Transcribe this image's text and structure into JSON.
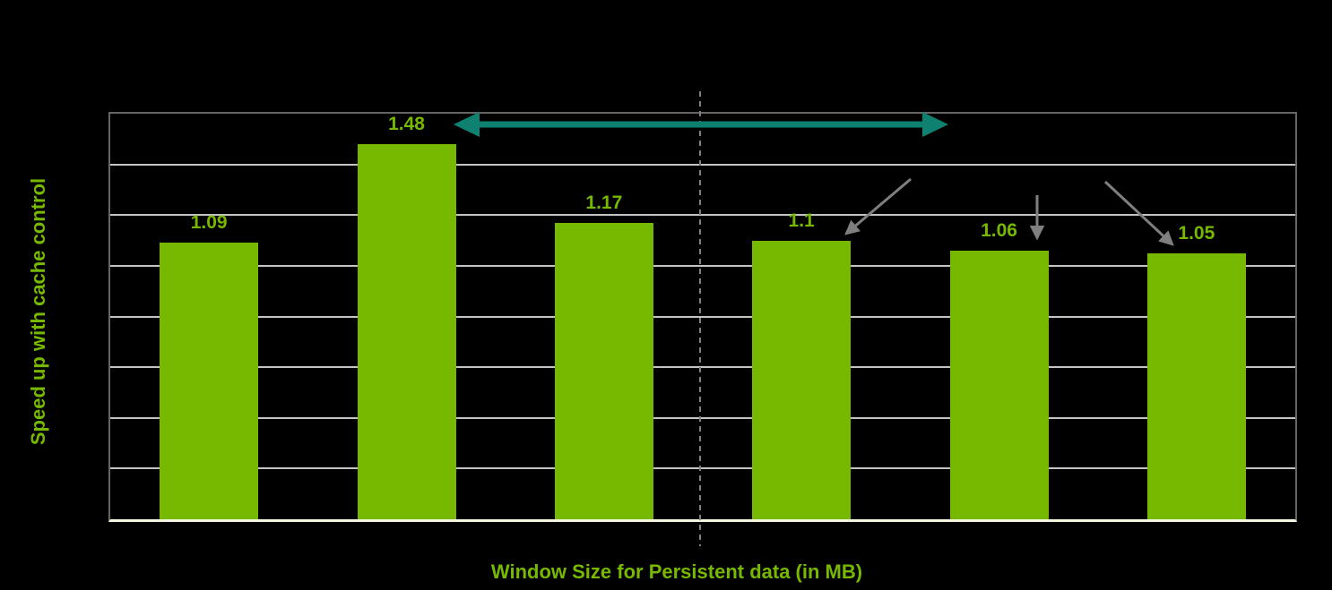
{
  "chart_data": {
    "type": "bar",
    "title": "",
    "xlabel": "Window Size for Persistent data (in MB)",
    "ylabel": "Speed up with cache control",
    "categories": [
      "",
      "",
      "",
      "",
      "",
      ""
    ],
    "values": [
      1.09,
      1.48,
      1.17,
      1.1,
      1.06,
      1.05
    ],
    "value_labels": [
      "1.09",
      "1.48",
      "1.17",
      "1.1",
      "1.06",
      "1.05"
    ],
    "ylim": [
      0,
      1.6
    ],
    "ytick_step": 0.2,
    "ytick_labels_visible": false,
    "xtick_labels_visible": false,
    "grid": true,
    "legend": "none",
    "colors": {
      "background": "#000000",
      "bar": "#76b900",
      "value_label": "#76b900",
      "axis_title": "#76b900",
      "gridline": "#c4c4c4",
      "plot_border": "#666666",
      "baseline": "#f4f7dd",
      "range_arrow": "#0e8170",
      "pointer_arrow": "#7f7f7f",
      "divider": "#7f7f7f"
    },
    "annotations": {
      "range_arrow": {
        "shape": "double-headed-horizontal-arrow",
        "spans": "above bars 2 to 4"
      },
      "divider_line": {
        "shape": "vertical-dashed-line",
        "position": "between bar 3 and bar 4"
      },
      "pointer_arrows": [
        {
          "shape": "arrow",
          "points_to": "bar-4-top"
        },
        {
          "shape": "arrow",
          "points_to": "bar-5-top"
        },
        {
          "shape": "arrow",
          "points_to": "bar-6-top"
        }
      ]
    }
  }
}
